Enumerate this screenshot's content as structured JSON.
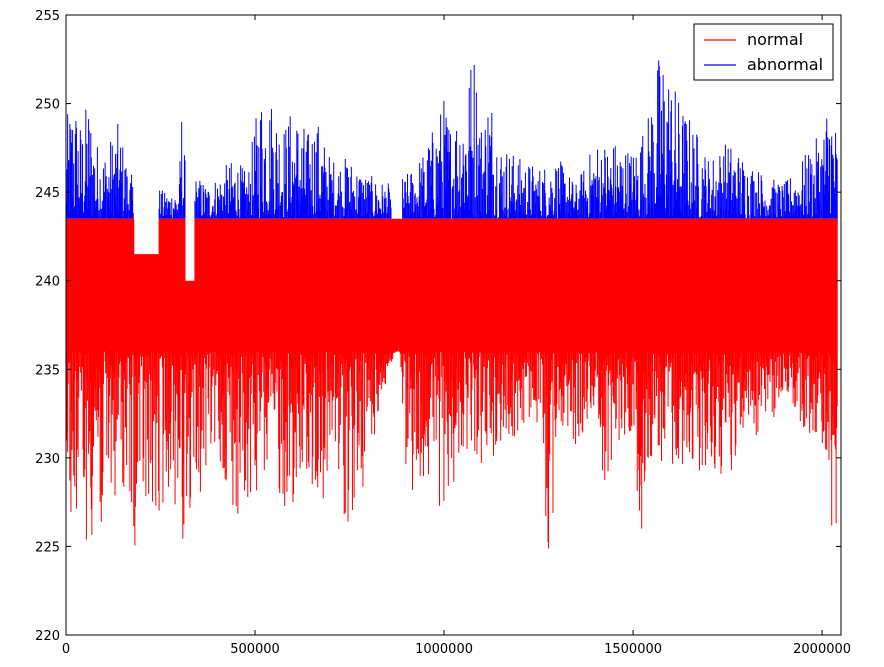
{
  "chart_data": {
    "type": "line",
    "title": "",
    "xlabel": "",
    "ylabel": "",
    "xlim": [
      0,
      2050000
    ],
    "ylim": [
      220,
      255
    ],
    "xticks": [
      0,
      500000,
      1000000,
      1500000,
      2000000
    ],
    "xtick_labels": [
      "0",
      "500000",
      "1000000",
      "1500000",
      "2000000"
    ],
    "yticks": [
      220,
      225,
      230,
      235,
      240,
      245,
      250,
      255
    ],
    "ytick_labels": [
      "220",
      "225",
      "230",
      "235",
      "240",
      "245",
      "250",
      "255"
    ],
    "grid": false,
    "legend_position": "top-right",
    "series": [
      {
        "name": "normal",
        "color": "#ff0000",
        "description_band": "values between ~223 and 243.5",
        "upper": 243.5,
        "x": [
          0,
          20000,
          40000,
          60000,
          80000,
          100000,
          120000,
          150000,
          180000,
          200000,
          240000,
          280000,
          305000,
          320000,
          340000,
          380000,
          420000,
          460000,
          500000,
          550000,
          600000,
          650000,
          700000,
          760000,
          800000,
          860000,
          880000,
          900000,
          960000,
          1000000,
          1050000,
          1100000,
          1150000,
          1200000,
          1250000,
          1280000,
          1300000,
          1350000,
          1400000,
          1420000,
          1450000,
          1500000,
          1520000,
          1550000,
          1600000,
          1650000,
          1700000,
          1750000,
          1800000,
          1850000,
          1900000,
          1950000,
          2000000,
          2020000,
          2040000
        ],
        "min": [
          228.5,
          226.0,
          226.5,
          224.5,
          227.0,
          223.0,
          227.5,
          228.0,
          224.5,
          226.0,
          225.5,
          229.0,
          224.0,
          227.0,
          226.0,
          230.0,
          228.5,
          225.5,
          228.0,
          227.5,
          226.5,
          227.0,
          227.5,
          226.0,
          229.5,
          235.0,
          236.5,
          227.5,
          229.0,
          226.5,
          230.5,
          229.5,
          230.5,
          231.0,
          232.0,
          222.8,
          232.0,
          230.5,
          233.0,
          227.8,
          230.5,
          231.5,
          225.3,
          230.0,
          229.0,
          228.5,
          229.5,
          228.0,
          232.0,
          230.5,
          234.0,
          231.5,
          231.0,
          226.0,
          224.8
        ]
      },
      {
        "name": "abnormal",
        "color": "#0000ff",
        "lower": 243.5,
        "x": [
          0,
          20000,
          40000,
          60000,
          80000,
          100000,
          140000,
          160000,
          180000,
          240000,
          260000,
          300000,
          305000,
          320000,
          340000,
          380000,
          420000,
          450000,
          480000,
          500000,
          520000,
          560000,
          580000,
          600000,
          640000,
          660000,
          700000,
          750000,
          800000,
          850000,
          900000,
          950000,
          1000000,
          1020000,
          1060000,
          1080000,
          1100000,
          1120000,
          1150000,
          1200000,
          1250000,
          1300000,
          1350000,
          1400000,
          1450000,
          1500000,
          1540000,
          1560000,
          1580000,
          1620000,
          1660000,
          1700000,
          1750000,
          1800000,
          1850000,
          1900000,
          1950000,
          2000000,
          2020000,
          2040000
        ],
        "max": [
          249.0,
          251.0,
          249.0,
          250.5,
          248.0,
          247.5,
          249.0,
          247.0,
          245.5,
          245.5,
          245.0,
          245.5,
          250.5,
          245.0,
          246.0,
          245.5,
          246.5,
          247.0,
          246.0,
          249.0,
          251.5,
          250.0,
          249.0,
          250.0,
          248.5,
          249.5,
          247.0,
          247.0,
          246.0,
          245.5,
          246.0,
          247.5,
          250.5,
          249.0,
          252.0,
          253.5,
          249.0,
          251.5,
          248.0,
          247.0,
          246.5,
          247.0,
          245.5,
          248.0,
          248.0,
          247.5,
          249.5,
          252.5,
          253.5,
          250.5,
          249.0,
          247.0,
          248.0,
          247.0,
          246.0,
          245.5,
          247.0,
          248.5,
          251.5,
          248.5
        ]
      }
    ],
    "gap_regions": [
      {
        "x": [
          180000,
          245000
        ],
        "normal_max": 241.5
      },
      {
        "x": [
          315000,
          340000
        ],
        "normal_max": 240.0
      },
      {
        "x": [
          860000,
          890000
        ],
        "normal_max": 243.5
      }
    ]
  }
}
